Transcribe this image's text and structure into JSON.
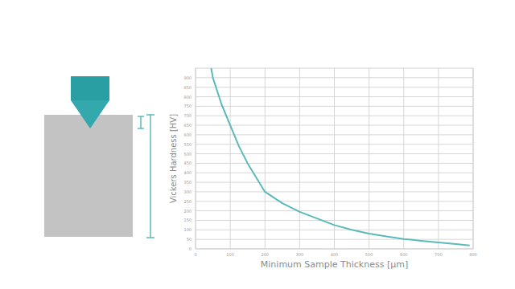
{
  "chart_data": {
    "type": "line",
    "x_label": "Minimum Sample Thickness [µm]",
    "y_label": "Vickers Hardness [HV]",
    "x": [
      45,
      50,
      75,
      100,
      125,
      150,
      200,
      250,
      300,
      350,
      400,
      450,
      500,
      550,
      600,
      650,
      700,
      750,
      790
    ],
    "values": [
      950,
      900,
      760,
      650,
      540,
      450,
      300,
      240,
      195,
      160,
      125,
      100,
      80,
      65,
      52,
      42,
      34,
      25,
      18
    ],
    "color": "#5bbab8",
    "xlim": [
      0,
      800
    ],
    "xticks": [
      0,
      100,
      200,
      300,
      400,
      500,
      600,
      700,
      800
    ],
    "ylim": [
      0,
      950
    ],
    "yticks": [
      0,
      50,
      100,
      150,
      200,
      250,
      300,
      350,
      400,
      450,
      500,
      550,
      600,
      650,
      700,
      750,
      800,
      850,
      900
    ],
    "grid": true
  }
}
